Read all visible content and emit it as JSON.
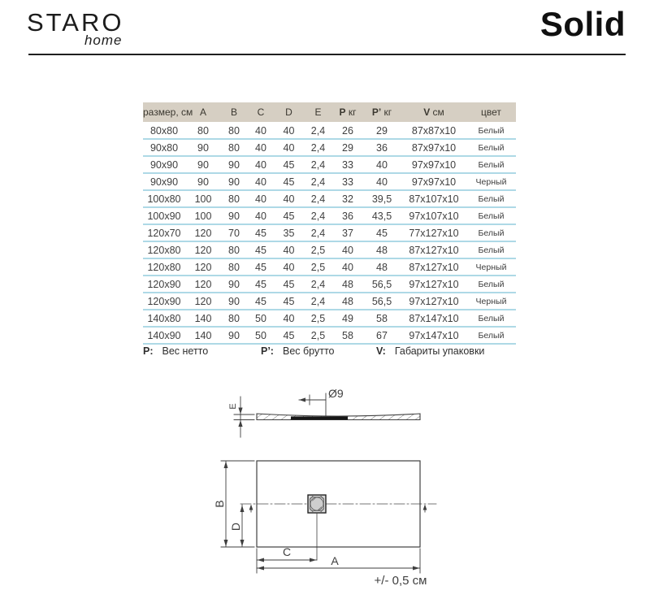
{
  "header": {
    "brand": "STARO",
    "brand_sub": "home",
    "title": "Solid"
  },
  "colors": {
    "header_bg": "#d6cfc3",
    "row_divider": "#aed9e6"
  },
  "table": {
    "columns": [
      {
        "label": "размер, см"
      },
      {
        "label": "A"
      },
      {
        "label": "B"
      },
      {
        "label": "C"
      },
      {
        "label": "D"
      },
      {
        "label": "E"
      },
      {
        "label": "P",
        "unit": "кг"
      },
      {
        "label": "P’",
        "unit": "кг"
      },
      {
        "label": "V",
        "unit": "см"
      },
      {
        "label": "цвет"
      }
    ],
    "rows": [
      [
        "80x80",
        "80",
        "80",
        "40",
        "40",
        "2,4",
        "26",
        "29",
        "87x87x10",
        "Белый"
      ],
      [
        "90x80",
        "90",
        "80",
        "40",
        "40",
        "2,4",
        "29",
        "36",
        "87x97x10",
        "Белый"
      ],
      [
        "90x90",
        "90",
        "90",
        "40",
        "45",
        "2,4",
        "33",
        "40",
        "97x97x10",
        "Белый"
      ],
      [
        "90x90",
        "90",
        "90",
        "40",
        "45",
        "2,4",
        "33",
        "40",
        "97x97x10",
        "Черный"
      ],
      [
        "100x80",
        "100",
        "80",
        "40",
        "40",
        "2,4",
        "32",
        "39,5",
        "87x107x10",
        "Белый"
      ],
      [
        "100x90",
        "100",
        "90",
        "40",
        "45",
        "2,4",
        "36",
        "43,5",
        "97x107x10",
        "Белый"
      ],
      [
        "120x70",
        "120",
        "70",
        "45",
        "35",
        "2,4",
        "37",
        "45",
        "77x127x10",
        "Белый"
      ],
      [
        "120x80",
        "120",
        "80",
        "45",
        "40",
        "2,5",
        "40",
        "48",
        "87x127x10",
        "Белый"
      ],
      [
        "120x80",
        "120",
        "80",
        "45",
        "40",
        "2,5",
        "40",
        "48",
        "87x127x10",
        "Черный"
      ],
      [
        "120x90",
        "120",
        "90",
        "45",
        "45",
        "2,4",
        "48",
        "56,5",
        "97x127x10",
        "Белый"
      ],
      [
        "120x90",
        "120",
        "90",
        "45",
        "45",
        "2,4",
        "48",
        "56,5",
        "97x127x10",
        "Черный"
      ],
      [
        "140x80",
        "140",
        "80",
        "50",
        "40",
        "2,5",
        "49",
        "58",
        "87x147x10",
        "Белый"
      ],
      [
        "140x90",
        "140",
        "90",
        "50",
        "45",
        "2,5",
        "58",
        "67",
        "97x147x10",
        "Белый"
      ]
    ]
  },
  "legend": [
    {
      "term": "P:",
      "def": "Вес нетто"
    },
    {
      "term": "P’:",
      "def": "Вес брутто"
    },
    {
      "term": "V:",
      "def": "Габариты упаковки"
    }
  ],
  "diagram": {
    "labels": {
      "thickness": "E",
      "drain_diameter": "Ø9",
      "width": "B",
      "drain_offset": "D",
      "drain_from_left": "C",
      "length": "A",
      "tolerance": "+/- 0,5 см"
    }
  }
}
